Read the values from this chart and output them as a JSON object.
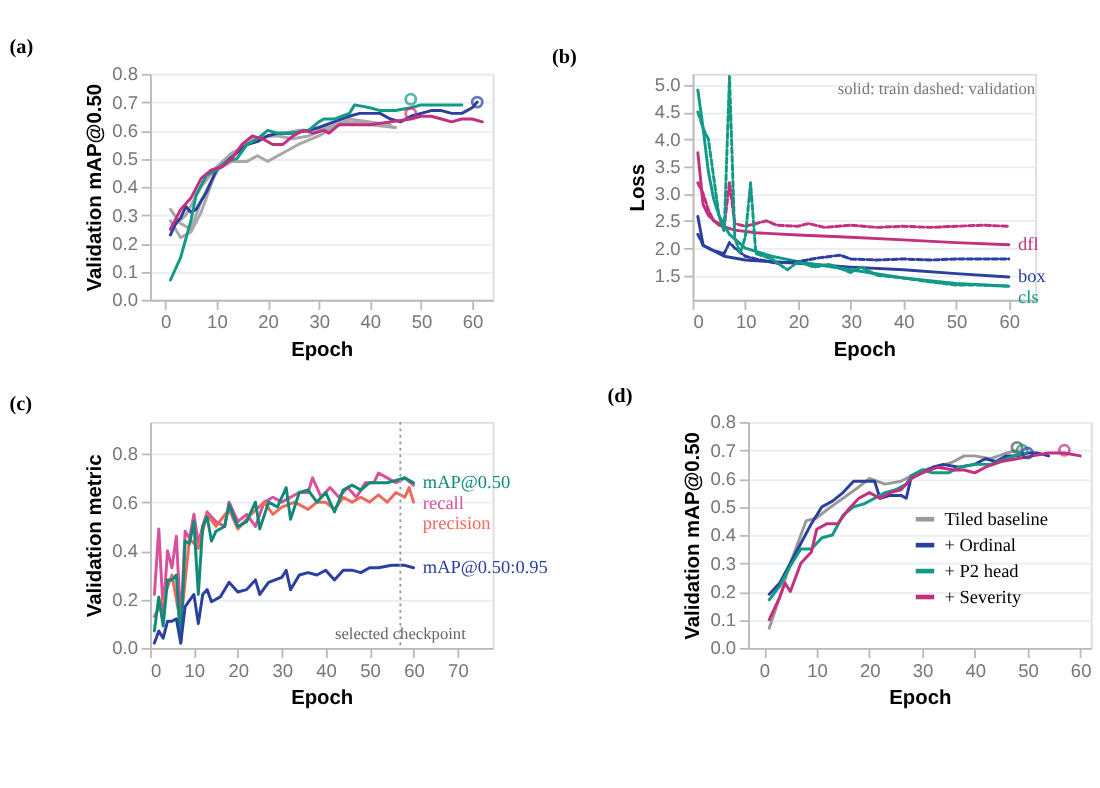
{
  "chart_data": [
    {
      "type": "line",
      "title": "(a)",
      "xlabel": "Epoch",
      "ylabel": "Validation mAP@0.50",
      "xlim": [
        -3,
        64
      ],
      "xticks": [
        0,
        10,
        20,
        30,
        40,
        50,
        60
      ],
      "ylim": [
        0,
        0.8
      ],
      "yticks": [
        {
          "value": 0,
          "label": "0.0"
        },
        0.1,
        0.2,
        0.3,
        0.4,
        0.5,
        0.6,
        0.7,
        0.8
      ],
      "grid": "y",
      "legend": false,
      "series": [
        {
          "color": "#a8a8a8",
          "x": [
            1,
            3,
            5,
            7,
            9,
            11,
            14,
            17,
            20,
            23,
            26,
            30,
            35,
            40,
            45
          ],
          "values": [
            0.32,
            0.27,
            0.25,
            0.35,
            0.42,
            0.48,
            0.52,
            0.57,
            0.58,
            0.59,
            0.6,
            0.6,
            0.63,
            0.62,
            0.61
          ]
        },
        {
          "color": "#a8a8a8",
          "x": [
            1,
            3,
            5,
            7,
            10,
            13,
            16,
            18,
            20,
            23,
            26,
            30,
            34,
            38,
            42,
            45
          ],
          "values": [
            0.28,
            0.22,
            0.24,
            0.31,
            0.46,
            0.49,
            0.49,
            0.51,
            0.49,
            0.52,
            0.55,
            0.58,
            0.62,
            0.63,
            0.62,
            0.61
          ]
        },
        {
          "color": "#a8a8a8",
          "x": [
            1,
            4,
            7,
            10,
            13,
            16,
            19,
            22,
            25,
            28,
            32,
            36,
            40,
            44
          ],
          "values": [
            0.25,
            0.3,
            0.4,
            0.47,
            0.52,
            0.55,
            0.58,
            0.58,
            0.57,
            0.58,
            0.61,
            0.64,
            0.63,
            0.62
          ]
        },
        {
          "color": "#2b3f9e",
          "x": [
            1,
            2,
            3,
            4,
            5,
            6,
            8,
            10,
            12,
            14,
            16,
            18,
            20,
            22,
            25,
            28,
            30,
            33,
            36,
            38,
            40,
            42,
            44,
            46,
            48,
            50,
            52,
            54,
            56,
            58,
            60,
            61
          ],
          "values": [
            0.23,
            0.27,
            0.29,
            0.33,
            0.31,
            0.32,
            0.38,
            0.46,
            0.49,
            0.52,
            0.55,
            0.56,
            0.58,
            0.59,
            0.59,
            0.6,
            0.61,
            0.63,
            0.65,
            0.66,
            0.66,
            0.66,
            0.64,
            0.63,
            0.65,
            0.66,
            0.67,
            0.67,
            0.66,
            0.66,
            0.68,
            0.7
          ]
        },
        {
          "color": "#129a86",
          "x": [
            1,
            3,
            5,
            6,
            8,
            10,
            12,
            14,
            16,
            18,
            20,
            22,
            25,
            28,
            30,
            31,
            33,
            36,
            37,
            40,
            42,
            45,
            48,
            50,
            53,
            56,
            58
          ],
          "values": [
            0.07,
            0.15,
            0.28,
            0.37,
            0.44,
            0.46,
            0.49,
            0.5,
            0.55,
            0.57,
            0.6,
            0.59,
            0.59,
            0.6,
            0.63,
            0.64,
            0.64,
            0.66,
            0.69,
            0.68,
            0.67,
            0.67,
            0.68,
            0.69,
            0.69,
            0.69,
            0.69
          ]
        },
        {
          "color": "#c2307f",
          "x": [
            1,
            3,
            5,
            7,
            9,
            11,
            13,
            15,
            17,
            19,
            21,
            23,
            25,
            27,
            29,
            31,
            32,
            34,
            36,
            40,
            44,
            48,
            50,
            52,
            54,
            56,
            58,
            60,
            62
          ],
          "values": [
            0.25,
            0.32,
            0.36,
            0.43,
            0.46,
            0.47,
            0.5,
            0.55,
            0.58,
            0.57,
            0.55,
            0.55,
            0.58,
            0.6,
            0.59,
            0.6,
            0.59,
            0.62,
            0.62,
            0.62,
            0.63,
            0.64,
            0.65,
            0.65,
            0.64,
            0.63,
            0.64,
            0.64,
            0.63
          ]
        },
        {
          "type": "scatter",
          "marker": "circle",
          "color": "#129a86",
          "x": [
            48
          ],
          "values": [
            0.71
          ]
        },
        {
          "type": "scatter",
          "marker": "circle",
          "color": "#c2307f",
          "x": [
            48
          ],
          "values": [
            0.66
          ]
        },
        {
          "type": "scatter",
          "marker": "circle",
          "color": "#2b3f9e",
          "x": [
            61
          ],
          "values": [
            0.7
          ]
        }
      ]
    },
    {
      "type": "line",
      "title": "(b)",
      "xlabel": "Epoch",
      "ylabel": "Loss",
      "xlim": [
        0,
        65
      ],
      "xticks": [
        0,
        10,
        20,
        30,
        40,
        50,
        60
      ],
      "ylim": [
        1.05,
        5.2
      ],
      "yticks": [
        {
          "value": 1.5,
          "label": "1.5"
        },
        {
          "value": 2.0,
          "label": "2.0"
        },
        {
          "value": 2.5,
          "label": "2.5"
        },
        {
          "value": 3.0,
          "label": "3.0"
        },
        {
          "value": 3.5,
          "label": "3.5"
        },
        {
          "value": 4.0,
          "label": "4.0"
        },
        {
          "value": 4.5,
          "label": "4.5"
        },
        {
          "value": 5.0,
          "label": "5.0"
        }
      ],
      "grid": "y",
      "legend": false,
      "annotations": [
        "solid: train   dashed: validation"
      ],
      "series": [
        {
          "name": "dfl",
          "color": "#c2307f",
          "x": [
            1,
            2,
            3,
            5,
            8,
            12,
            20,
            30,
            40,
            50,
            60
          ],
          "values": [
            3.75,
            2.8,
            2.6,
            2.42,
            2.33,
            2.28,
            2.24,
            2.2,
            2.15,
            2.1,
            2.06
          ]
        },
        {
          "color": "#c2307f",
          "line_style": "dashed",
          "x": [
            1,
            2,
            3,
            4,
            5,
            6,
            7,
            8,
            10,
            14,
            16,
            20,
            22,
            25,
            30,
            35,
            40,
            45,
            50,
            55,
            60
          ],
          "values": [
            3.2,
            3.0,
            2.7,
            2.5,
            2.45,
            2.4,
            3.2,
            2.45,
            2.4,
            2.5,
            2.42,
            2.4,
            2.45,
            2.38,
            2.42,
            2.38,
            2.4,
            2.38,
            2.4,
            2.42,
            2.4
          ]
        },
        {
          "name": "box",
          "color": "#2b3f9e",
          "x": [
            1,
            2,
            4,
            6,
            10,
            20,
            30,
            40,
            50,
            60
          ],
          "values": [
            2.58,
            2.05,
            1.95,
            1.85,
            1.78,
            1.72,
            1.65,
            1.6,
            1.53,
            1.47
          ]
        },
        {
          "color": "#2b3f9e",
          "line_style": "dashed",
          "x": [
            1,
            2,
            4,
            6,
            7,
            8,
            10,
            12,
            16,
            20,
            24,
            28,
            30,
            35,
            40,
            45,
            50,
            55,
            60
          ],
          "values": [
            2.25,
            2.05,
            1.95,
            1.9,
            2.1,
            2.0,
            1.85,
            1.8,
            1.72,
            1.75,
            1.82,
            1.87,
            1.8,
            1.78,
            1.8,
            1.78,
            1.8,
            1.8,
            1.8
          ]
        },
        {
          "name": "cls",
          "color": "#129a86",
          "x": [
            1,
            2,
            3,
            4,
            5,
            7,
            10,
            15,
            20,
            30,
            40,
            50,
            60
          ],
          "values": [
            4.9,
            4.2,
            3.4,
            2.9,
            2.6,
            2.25,
            2.0,
            1.85,
            1.75,
            1.6,
            1.45,
            1.35,
            1.3
          ]
        },
        {
          "color": "#129a86",
          "line_style": "dashed",
          "x": [
            1,
            2,
            3,
            4,
            5,
            6,
            7,
            8,
            9,
            10,
            11,
            12,
            15,
            18,
            20,
            23,
            26,
            30,
            32,
            35,
            40,
            45,
            50,
            55,
            60
          ],
          "values": [
            4.5,
            4.2,
            4.0,
            3.3,
            2.6,
            2.3,
            5.15,
            2.2,
            1.9,
            2.2,
            3.2,
            1.9,
            1.8,
            1.6,
            1.75,
            1.65,
            1.7,
            1.55,
            1.65,
            1.5,
            1.45,
            1.38,
            1.32,
            1.32,
            1.3
          ]
        }
      ]
    },
    {
      "type": "line",
      "title": "(c)",
      "xlabel": "Epoch",
      "ylabel": "Validation metric",
      "xlim": [
        0,
        78
      ],
      "xticks": [
        0,
        10,
        20,
        30,
        40,
        50,
        60,
        70
      ],
      "ylim": [
        0,
        0.93
      ],
      "yticks": [
        {
          "value": 0,
          "label": "0.0"
        },
        0.2,
        0.4,
        0.6,
        0.8
      ],
      "grid": "y",
      "legend": false,
      "ref_lines": [
        {
          "axis": "x",
          "value": 57,
          "label": "selected checkpoint",
          "color": "#999999",
          "line_style": "dotted"
        }
      ],
      "series": [
        {
          "name": "recall",
          "color": "#d9509b",
          "x": [
            1,
            2,
            3,
            4,
            5,
            6,
            7,
            8,
            9,
            10,
            11,
            12,
            13,
            15,
            17,
            18,
            20,
            22,
            24,
            26,
            28,
            30,
            32,
            34,
            36,
            37,
            39,
            41,
            43,
            45,
            47,
            49,
            51,
            52,
            54,
            56,
            58,
            60
          ],
          "values": [
            0.22,
            0.49,
            0.15,
            0.4,
            0.33,
            0.46,
            0.1,
            0.48,
            0.45,
            0.55,
            0.43,
            0.5,
            0.56,
            0.52,
            0.5,
            0.6,
            0.52,
            0.55,
            0.5,
            0.6,
            0.62,
            0.6,
            0.62,
            0.64,
            0.64,
            0.7,
            0.62,
            0.66,
            0.62,
            0.66,
            0.62,
            0.68,
            0.68,
            0.72,
            0.7,
            0.68,
            0.7,
            0.67
          ]
        },
        {
          "name": "precision",
          "color": "#ee6a5a",
          "x": [
            1,
            3,
            5,
            7,
            9,
            11,
            13,
            15,
            18,
            20,
            23,
            26,
            28,
            30,
            33,
            36,
            38,
            40,
            42,
            44,
            46,
            48,
            50,
            52,
            54,
            56,
            58,
            59,
            60
          ],
          "values": [
            0.13,
            0.2,
            0.3,
            0.1,
            0.45,
            0.41,
            0.55,
            0.5,
            0.57,
            0.49,
            0.55,
            0.6,
            0.55,
            0.58,
            0.6,
            0.57,
            0.6,
            0.6,
            0.57,
            0.62,
            0.6,
            0.62,
            0.6,
            0.63,
            0.6,
            0.64,
            0.62,
            0.66,
            0.6
          ]
        },
        {
          "name": "mAP@0.50",
          "color": "#0f8a78",
          "x": [
            1,
            2,
            3,
            4,
            5,
            6,
            7,
            8,
            9,
            10,
            11,
            12,
            13,
            14,
            15,
            17,
            18,
            20,
            22,
            24,
            25,
            27,
            29,
            31,
            32,
            34,
            36,
            38,
            40,
            42,
            44,
            46,
            48,
            50,
            52,
            54,
            56,
            58,
            60
          ],
          "values": [
            0.07,
            0.21,
            0.09,
            0.28,
            0.28,
            0.3,
            0.02,
            0.44,
            0.43,
            0.52,
            0.22,
            0.5,
            0.54,
            0.44,
            0.48,
            0.5,
            0.59,
            0.5,
            0.52,
            0.6,
            0.49,
            0.6,
            0.58,
            0.66,
            0.53,
            0.64,
            0.65,
            0.6,
            0.64,
            0.56,
            0.65,
            0.67,
            0.65,
            0.68,
            0.68,
            0.68,
            0.69,
            0.7,
            0.68
          ]
        },
        {
          "name": "mAP@0.50:0.95",
          "color": "#2b3f9e",
          "x": [
            1,
            2,
            3,
            4,
            5,
            6,
            7,
            8,
            10,
            11,
            12,
            13,
            14,
            16,
            18,
            20,
            22,
            24,
            25,
            27,
            30,
            31,
            32,
            34,
            36,
            38,
            40,
            42,
            44,
            46,
            48,
            50,
            52,
            55,
            58,
            60
          ],
          "values": [
            0.02,
            0.07,
            0.04,
            0.11,
            0.11,
            0.12,
            0.02,
            0.17,
            0.22,
            0.1,
            0.22,
            0.24,
            0.19,
            0.21,
            0.27,
            0.23,
            0.24,
            0.28,
            0.22,
            0.27,
            0.29,
            0.32,
            0.24,
            0.3,
            0.31,
            0.3,
            0.32,
            0.28,
            0.32,
            0.32,
            0.31,
            0.33,
            0.33,
            0.34,
            0.34,
            0.33
          ]
        }
      ]
    },
    {
      "type": "line",
      "title": "(d)",
      "xlabel": "Epoch",
      "ylabel": "Validation mAP@0.50",
      "xlim": [
        -3,
        62
      ],
      "xticks": [
        0,
        10,
        20,
        30,
        40,
        50,
        60
      ],
      "ylim": [
        0,
        0.8
      ],
      "yticks": [
        {
          "value": 0,
          "label": "0.0"
        },
        0.1,
        0.2,
        0.3,
        0.4,
        0.5,
        0.6,
        0.7,
        0.8
      ],
      "grid": "y",
      "legend": "bottom right",
      "series": [
        {
          "name": "Tiled baseline",
          "color": "#9a9a9a",
          "x": [
            1,
            3,
            5,
            7,
            8,
            10,
            12,
            15,
            18,
            20,
            23,
            26,
            28,
            30,
            33,
            36,
            38,
            40,
            43,
            46,
            48
          ],
          "values": [
            0.07,
            0.18,
            0.3,
            0.4,
            0.45,
            0.46,
            0.49,
            0.53,
            0.57,
            0.6,
            0.58,
            0.59,
            0.61,
            0.63,
            0.64,
            0.66,
            0.68,
            0.68,
            0.67,
            0.69,
            0.7
          ]
        },
        {
          "name": "+ Ordinal",
          "color": "#2b3f9e",
          "x": [
            1,
            3,
            5,
            7,
            9,
            11,
            13,
            15,
            17,
            19,
            21,
            22,
            24,
            26,
            27,
            28,
            30,
            32,
            34,
            37,
            40,
            42,
            44,
            46,
            48,
            50,
            52,
            54
          ],
          "values": [
            0.19,
            0.23,
            0.3,
            0.37,
            0.44,
            0.5,
            0.52,
            0.55,
            0.59,
            0.59,
            0.59,
            0.53,
            0.54,
            0.54,
            0.53,
            0.61,
            0.62,
            0.64,
            0.65,
            0.64,
            0.65,
            0.67,
            0.66,
            0.68,
            0.68,
            0.69,
            0.69,
            0.68
          ]
        },
        {
          "name": "+ P2 head",
          "color": "#129a86",
          "x": [
            1,
            3,
            5,
            7,
            9,
            11,
            13,
            15,
            17,
            19,
            21,
            23,
            25,
            27,
            28,
            30,
            32,
            35,
            37,
            40,
            43,
            46,
            49
          ],
          "values": [
            0.17,
            0.22,
            0.29,
            0.35,
            0.35,
            0.39,
            0.4,
            0.47,
            0.5,
            0.51,
            0.53,
            0.55,
            0.56,
            0.58,
            0.61,
            0.63,
            0.62,
            0.62,
            0.64,
            0.65,
            0.65,
            0.67,
            0.69
          ]
        },
        {
          "name": "+ Severity",
          "color": "#c2307f",
          "x": [
            1,
            3,
            4,
            5,
            7,
            9,
            10,
            12,
            14,
            16,
            18,
            20,
            22,
            24,
            26,
            28,
            30,
            33,
            36,
            38,
            40,
            42,
            45,
            48,
            51,
            54,
            57,
            60
          ],
          "values": [
            0.1,
            0.18,
            0.23,
            0.2,
            0.3,
            0.34,
            0.42,
            0.44,
            0.44,
            0.49,
            0.53,
            0.55,
            0.53,
            0.55,
            0.56,
            0.6,
            0.62,
            0.64,
            0.63,
            0.63,
            0.62,
            0.64,
            0.66,
            0.67,
            0.68,
            0.69,
            0.69,
            0.68
          ]
        },
        {
          "type": "scatter",
          "marker": "circle",
          "color": "#555555",
          "x": [
            48
          ],
          "values": [
            0.71
          ]
        },
        {
          "type": "scatter",
          "marker": "circle",
          "color": "#129a86",
          "x": [
            49
          ],
          "values": [
            0.7
          ]
        },
        {
          "type": "scatter",
          "marker": "circle",
          "color": "#2b3f9e",
          "x": [
            50
          ],
          "values": [
            0.69
          ]
        },
        {
          "type": "scatter",
          "marker": "circle",
          "color": "#c2307f",
          "x": [
            57
          ],
          "values": [
            0.7
          ]
        }
      ]
    }
  ]
}
